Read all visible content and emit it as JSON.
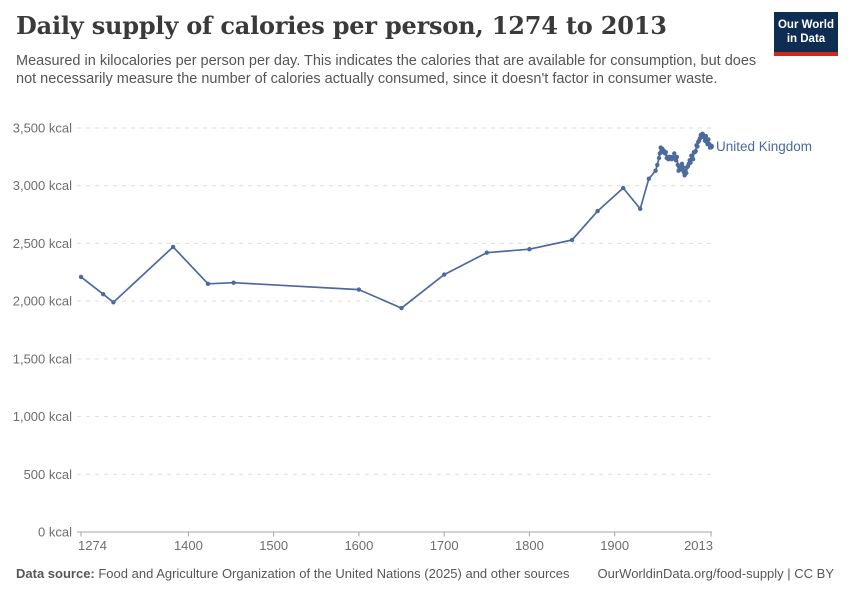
{
  "header": {
    "title": "Daily supply of calories per person, 1274 to 2013",
    "subtitle": "Measured in kilocalories per person per day. This indicates the calories that are available for consumption, but does not necessarily measure the number of calories actually consumed, since it doesn't factor in consumer waste."
  },
  "logo": {
    "line1": "Our World",
    "line2": "in Data"
  },
  "chart_data": {
    "type": "line",
    "title": "Daily supply of calories per person, 1274 to 2013",
    "xlabel": "",
    "ylabel": "kcal",
    "xlim": [
      1274,
      2013
    ],
    "ylim": [
      0,
      3500
    ],
    "grid": "horizontal-dashed",
    "legend_position": "end-of-line",
    "x_ticks": [
      1274,
      1400,
      1500,
      1600,
      1700,
      1800,
      1900,
      2013
    ],
    "y_ticks": [
      0,
      500,
      1000,
      1500,
      2000,
      2500,
      3000,
      3500
    ],
    "y_tick_labels": [
      "0 kcal",
      "500 kcal",
      "1,000 kcal",
      "1,500 kcal",
      "2,000 kcal",
      "2,500 kcal",
      "3,000 kcal",
      "3,500 kcal"
    ],
    "series": [
      {
        "name": "United Kingdom",
        "color": "#4c6a9c",
        "points": [
          [
            1274,
            2210
          ],
          [
            1300,
            2060
          ],
          [
            1312,
            1990
          ],
          [
            1382,
            2470
          ],
          [
            1423,
            2150
          ],
          [
            1453,
            2160
          ],
          [
            1600,
            2100
          ],
          [
            1650,
            1940
          ],
          [
            1700,
            2230
          ],
          [
            1750,
            2420
          ],
          [
            1800,
            2450
          ],
          [
            1850,
            2530
          ],
          [
            1880,
            2780
          ],
          [
            1910,
            2980
          ],
          [
            1930,
            2800
          ],
          [
            1940,
            3060
          ],
          [
            1948,
            3130
          ],
          [
            1950,
            3180
          ],
          [
            1952,
            3240
          ],
          [
            1953,
            3280
          ],
          [
            1954,
            3330
          ],
          [
            1955,
            3300
          ],
          [
            1956,
            3320
          ],
          [
            1957,
            3290
          ],
          [
            1958,
            3300
          ],
          [
            1959,
            3280
          ],
          [
            1960,
            3290
          ],
          [
            1961,
            3240
          ],
          [
            1962,
            3250
          ],
          [
            1963,
            3230
          ],
          [
            1964,
            3250
          ],
          [
            1965,
            3240
          ],
          [
            1966,
            3250
          ],
          [
            1967,
            3230
          ],
          [
            1968,
            3240
          ],
          [
            1969,
            3250
          ],
          [
            1970,
            3280
          ],
          [
            1971,
            3250
          ],
          [
            1972,
            3220
          ],
          [
            1973,
            3250
          ],
          [
            1974,
            3180
          ],
          [
            1975,
            3130
          ],
          [
            1976,
            3160
          ],
          [
            1977,
            3140
          ],
          [
            1978,
            3160
          ],
          [
            1979,
            3190
          ],
          [
            1980,
            3160
          ],
          [
            1981,
            3120
          ],
          [
            1982,
            3090
          ],
          [
            1983,
            3130
          ],
          [
            1984,
            3110
          ],
          [
            1985,
            3160
          ],
          [
            1986,
            3170
          ],
          [
            1987,
            3190
          ],
          [
            1988,
            3220
          ],
          [
            1989,
            3200
          ],
          [
            1990,
            3260
          ],
          [
            1991,
            3240
          ],
          [
            1992,
            3230
          ],
          [
            1993,
            3290
          ],
          [
            1994,
            3290
          ],
          [
            1995,
            3300
          ],
          [
            1996,
            3350
          ],
          [
            1997,
            3340
          ],
          [
            1998,
            3380
          ],
          [
            1999,
            3390
          ],
          [
            2000,
            3410
          ],
          [
            2001,
            3440
          ],
          [
            2002,
            3420
          ],
          [
            2003,
            3450
          ],
          [
            2004,
            3440
          ],
          [
            2005,
            3420
          ],
          [
            2006,
            3390
          ],
          [
            2007,
            3430
          ],
          [
            2008,
            3380
          ],
          [
            2009,
            3360
          ],
          [
            2010,
            3400
          ],
          [
            2011,
            3360
          ],
          [
            2012,
            3330
          ],
          [
            2013,
            3340
          ]
        ]
      }
    ]
  },
  "footer": {
    "datasource_label": "Data source:",
    "datasource_text": " Food and Agriculture Organization of the United Nations (2025) and other sources",
    "credit": "OurWorldinData.org/food-supply | CC BY"
  },
  "colors": {
    "line": "#4c6a9c",
    "logo_bg": "#0f2d52",
    "logo_accent": "#d0281f",
    "grid": "#dedede",
    "axis": "#a5a5a5",
    "text": "#555555"
  }
}
